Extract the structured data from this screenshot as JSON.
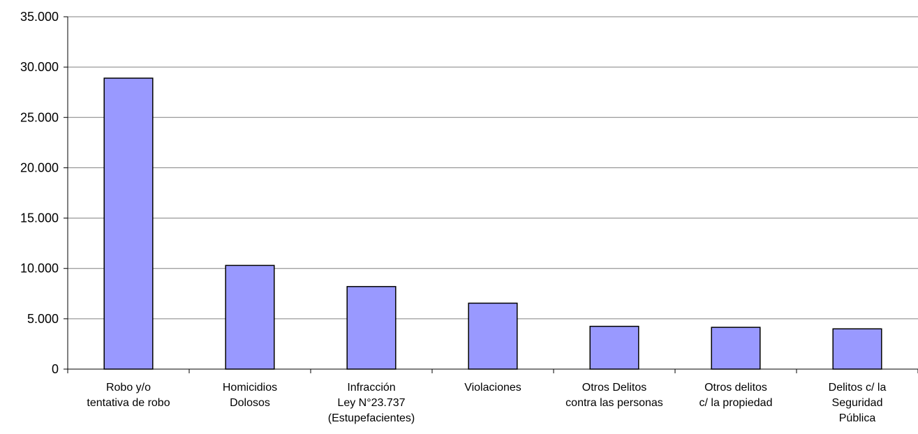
{
  "chart_data": {
    "type": "bar",
    "title": "",
    "xlabel": "",
    "ylabel": "",
    "categories": [
      [
        "Robo y/o",
        "tentativa de robo"
      ],
      [
        "Homicidios",
        "Dolosos"
      ],
      [
        "Infracción",
        "Ley N°23.737",
        "(Estupefacientes)"
      ],
      [
        "Violaciones"
      ],
      [
        "Otros Delitos",
        "contra las personas"
      ],
      [
        "Otros delitos",
        "c/ la propiedad"
      ],
      [
        "Delitos c/ la",
        "Seguridad",
        "Pública"
      ]
    ],
    "values": [
      28900,
      10300,
      8200,
      6550,
      4250,
      4150,
      4000
    ],
    "ylim": [
      0,
      35000
    ],
    "y_ticks": [
      0,
      5000,
      10000,
      15000,
      20000,
      25000,
      30000,
      35000
    ],
    "y_tick_labels": [
      "0",
      "5.000",
      "10.000",
      "15.000",
      "20.000",
      "25.000",
      "30.000",
      "35.000"
    ],
    "grid": true,
    "legend": "none",
    "colors": {
      "bar_fill": "#9999ff",
      "bar_stroke": "#000000",
      "grid": "#808080",
      "axis": "#000000"
    }
  }
}
